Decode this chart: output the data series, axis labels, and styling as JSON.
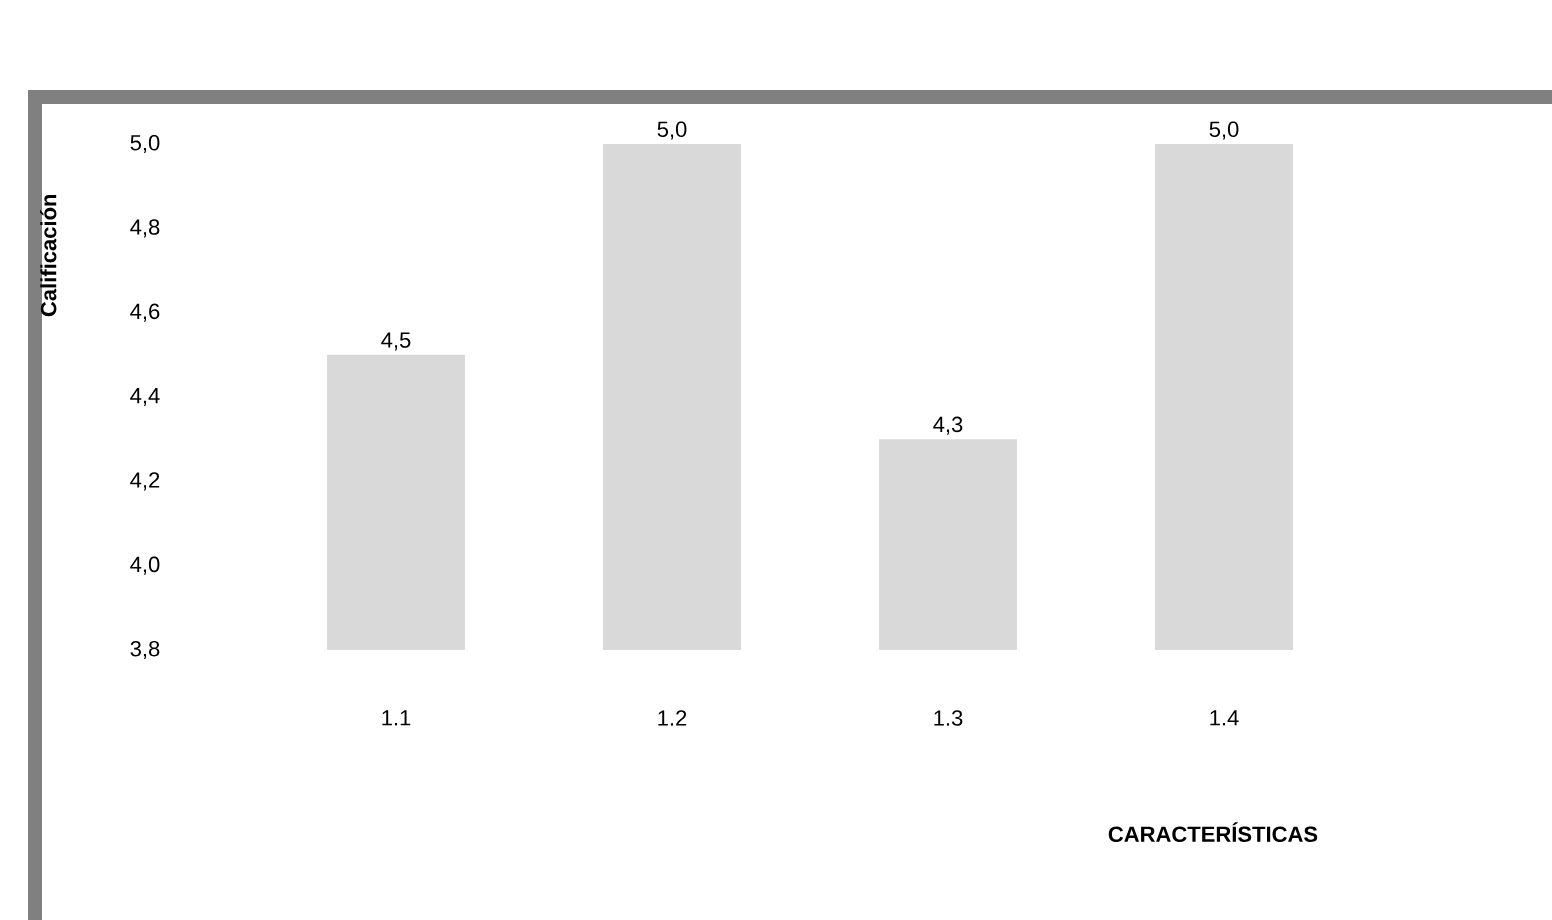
{
  "chart_data": {
    "type": "bar",
    "xlabel": "CARACTERÍSTICAS",
    "ylabel": "Calificación",
    "categories": [
      "1.1",
      "1.2",
      "1.3",
      "1.4"
    ],
    "values": [
      4.5,
      5.0,
      4.3,
      5.0
    ],
    "value_labels": [
      "4,5",
      "5,0",
      "4,3",
      "5,0"
    ],
    "color": "#d9d9d9",
    "ylim": [
      3.8,
      5.0
    ],
    "yticks": [
      {
        "value": 3.8,
        "label": "3,8"
      },
      {
        "value": 4.0,
        "label": "4,0"
      },
      {
        "value": 4.2,
        "label": "4,2"
      },
      {
        "value": 4.4,
        "label": "4,4"
      },
      {
        "value": 4.6,
        "label": "4,6"
      },
      {
        "value": 4.8,
        "label": "4,8"
      },
      {
        "value": 5.0,
        "label": "5,0"
      }
    ]
  }
}
